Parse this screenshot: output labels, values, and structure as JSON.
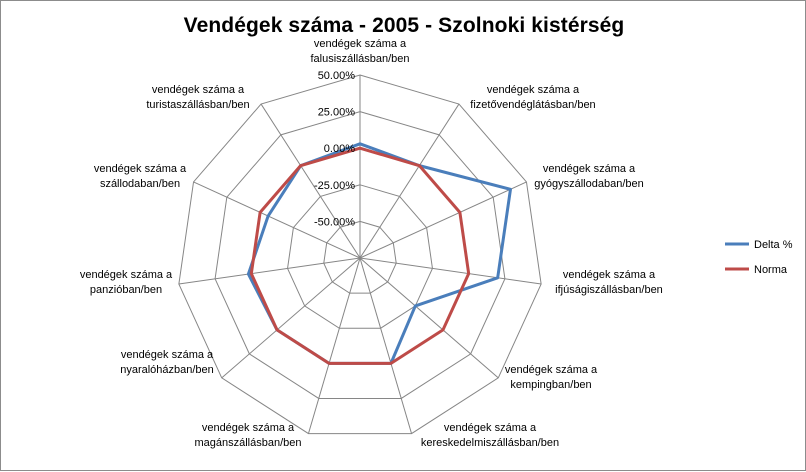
{
  "chart_data": {
    "type": "radar",
    "title": "Vendégek száma - 2005 - Szolnoki kistérség",
    "categories": [
      [
        "vendégek száma a",
        "falusiszállásban/ben"
      ],
      [
        "vendégek száma a",
        "fizetővendéglátásban/ben"
      ],
      [
        "vendégek száma a",
        "gyógyszállodaban/ben"
      ],
      [
        "vendégek száma a",
        "ifjúságiszállásban/ben"
      ],
      [
        "vendégek száma a",
        "kempingban/ben"
      ],
      [
        "vendégek száma a",
        "kereskedelmiszállásban/ben"
      ],
      [
        "vendégek száma a",
        "magánszállásban/ben"
      ],
      [
        "vendégek száma a",
        "nyaralóházban/ben"
      ],
      [
        "vendégek száma a",
        "panzióban/ben"
      ],
      [
        "vendégek száma a",
        "szállodaban/ben"
      ],
      [
        "vendégek száma a",
        "turistaszállásban/ben"
      ]
    ],
    "r_range": [
      -75,
      50
    ],
    "r_ticks": [
      -50,
      -25,
      0,
      25,
      50
    ],
    "tick_labels": [
      "-50.00%",
      "-25.00%",
      "0.00%",
      "25.00%",
      "50.00%"
    ],
    "series": [
      {
        "name": "Delta %",
        "color": "#4a7ebb",
        "values": [
          3,
          0,
          38,
          20,
          -25,
          0,
          0,
          0,
          2,
          -6,
          0
        ]
      },
      {
        "name": "Norma",
        "color": "#be4b48",
        "values": [
          0,
          0,
          0,
          0,
          0,
          0,
          0,
          0,
          0,
          0,
          0
        ]
      }
    ]
  }
}
